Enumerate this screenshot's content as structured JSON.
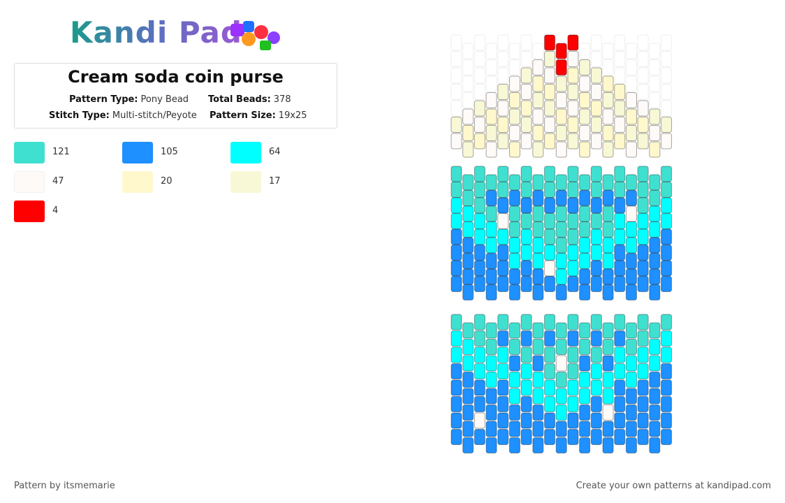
{
  "header": {
    "logo": "Kandi Pad",
    "title": "Cream soda coin purse",
    "info": [
      {
        "label": "Pattern Type:",
        "value": "Pony Bead"
      },
      {
        "label": "Total Beads:",
        "value": 378
      },
      {
        "label": "Stitch Type:",
        "value": "Multi-stitch/Peyote"
      },
      {
        "label": "Pattern Size:",
        "value": "19x25"
      }
    ]
  },
  "legend": [
    {
      "color": "#40e0d0",
      "count": 121
    },
    {
      "color": "#1e90ff",
      "count": 105
    },
    {
      "color": "#00ffff",
      "count": 64
    },
    {
      "color": "#fefaf8",
      "count": 47
    },
    {
      "color": "#fff8cc",
      "count": 20
    },
    {
      "color": "#f8f8d6",
      "count": 17
    },
    {
      "color": "#ff0000",
      "count": 4
    }
  ],
  "footer": {
    "left": "Pattern by itsmemarie",
    "right": "Create your own patterns at kandipad.com"
  }
}
